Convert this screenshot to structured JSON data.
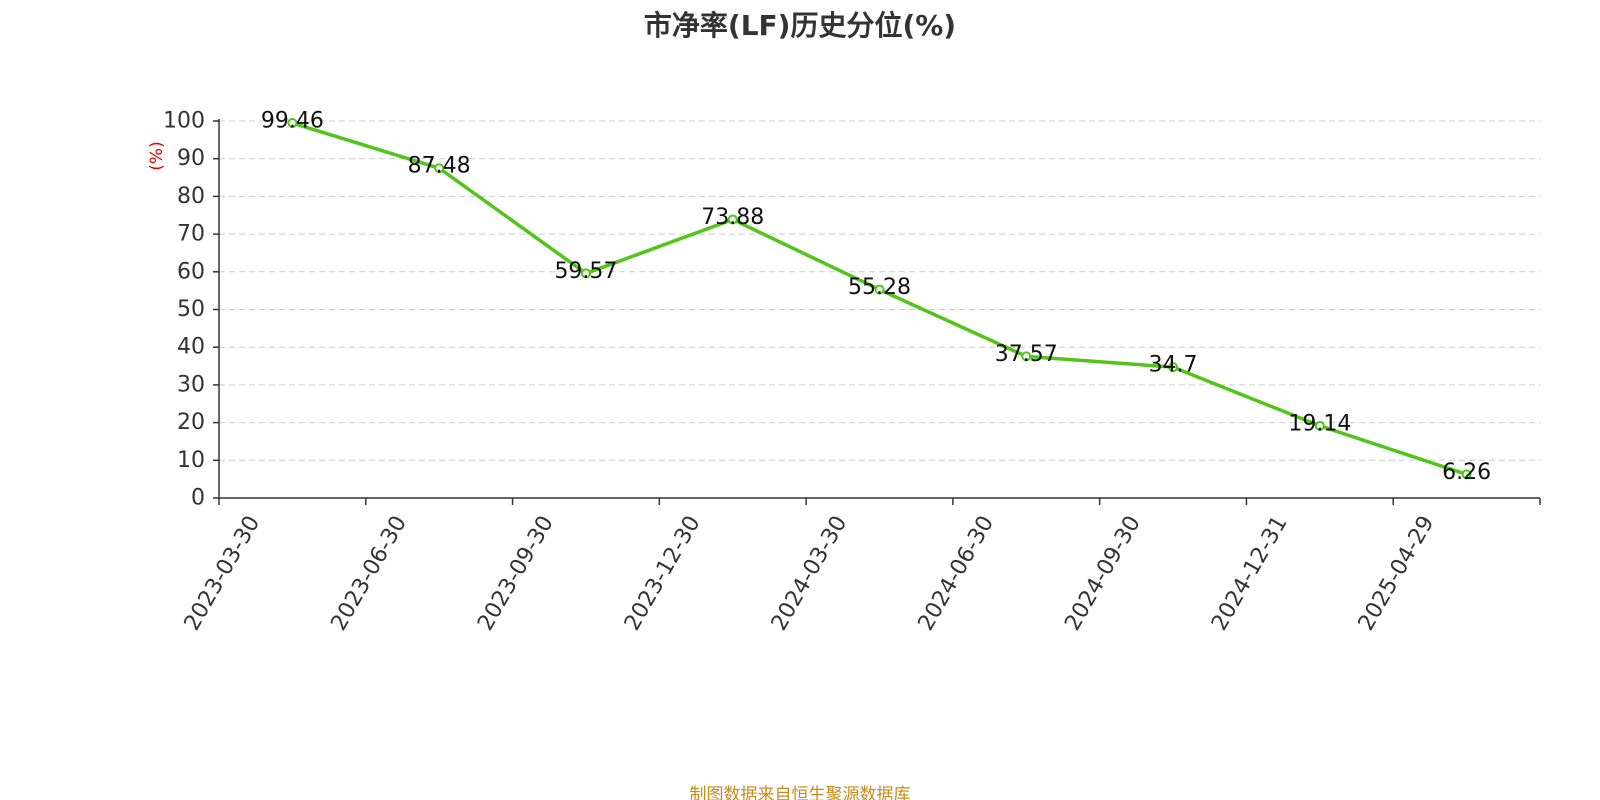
{
  "colors": {
    "line": "#52c41a",
    "marker_fill": "#ffffff",
    "unit_label": "#e60000",
    "source_text": "#c98a1b",
    "axis": "#333333",
    "grid": "#cccccc"
  },
  "source_text": "制图数据来自恒生聚源数据库",
  "chart_data": {
    "type": "line",
    "title": "市净率(LF)历史分位(%)",
    "ylabel": "(%)",
    "xlabel": "",
    "ylim": [
      0,
      100
    ],
    "yticks": [
      0,
      10,
      20,
      30,
      40,
      50,
      60,
      70,
      80,
      90,
      100
    ],
    "grid": true,
    "categories": [
      "2023-03-30",
      "2023-06-30",
      "2023-09-30",
      "2023-12-30",
      "2024-03-30",
      "2024-06-30",
      "2024-09-30",
      "2024-12-31",
      "2025-04-29"
    ],
    "series": [
      {
        "values": [
          99.46,
          87.48,
          59.57,
          73.88,
          55.28,
          37.57,
          34.7,
          19.14,
          6.26
        ],
        "labels": [
          "99.46",
          "87.48",
          "59.57",
          "73.88",
          "55.28",
          "37.57",
          "34.7",
          "19.14",
          "6.26"
        ]
      }
    ]
  }
}
